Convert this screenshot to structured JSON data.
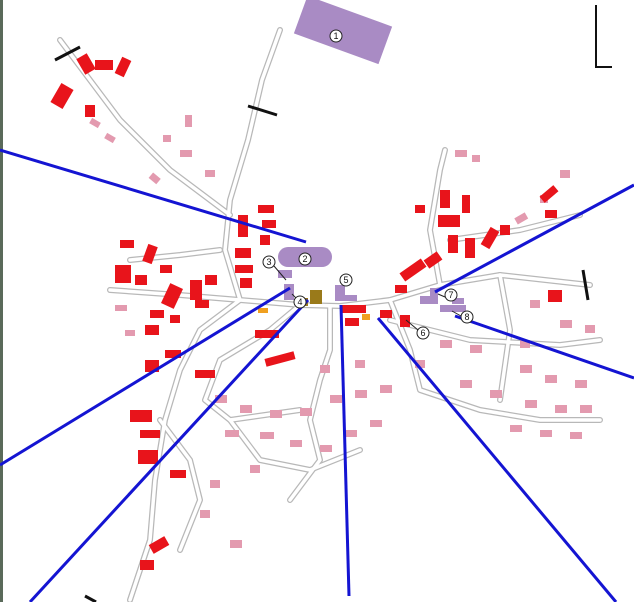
{
  "markers": [
    {
      "label": "1"
    },
    {
      "label": "2"
    },
    {
      "label": "3"
    },
    {
      "label": "4"
    },
    {
      "label": "5"
    },
    {
      "label": "6"
    },
    {
      "label": "7"
    },
    {
      "label": "8"
    }
  ]
}
